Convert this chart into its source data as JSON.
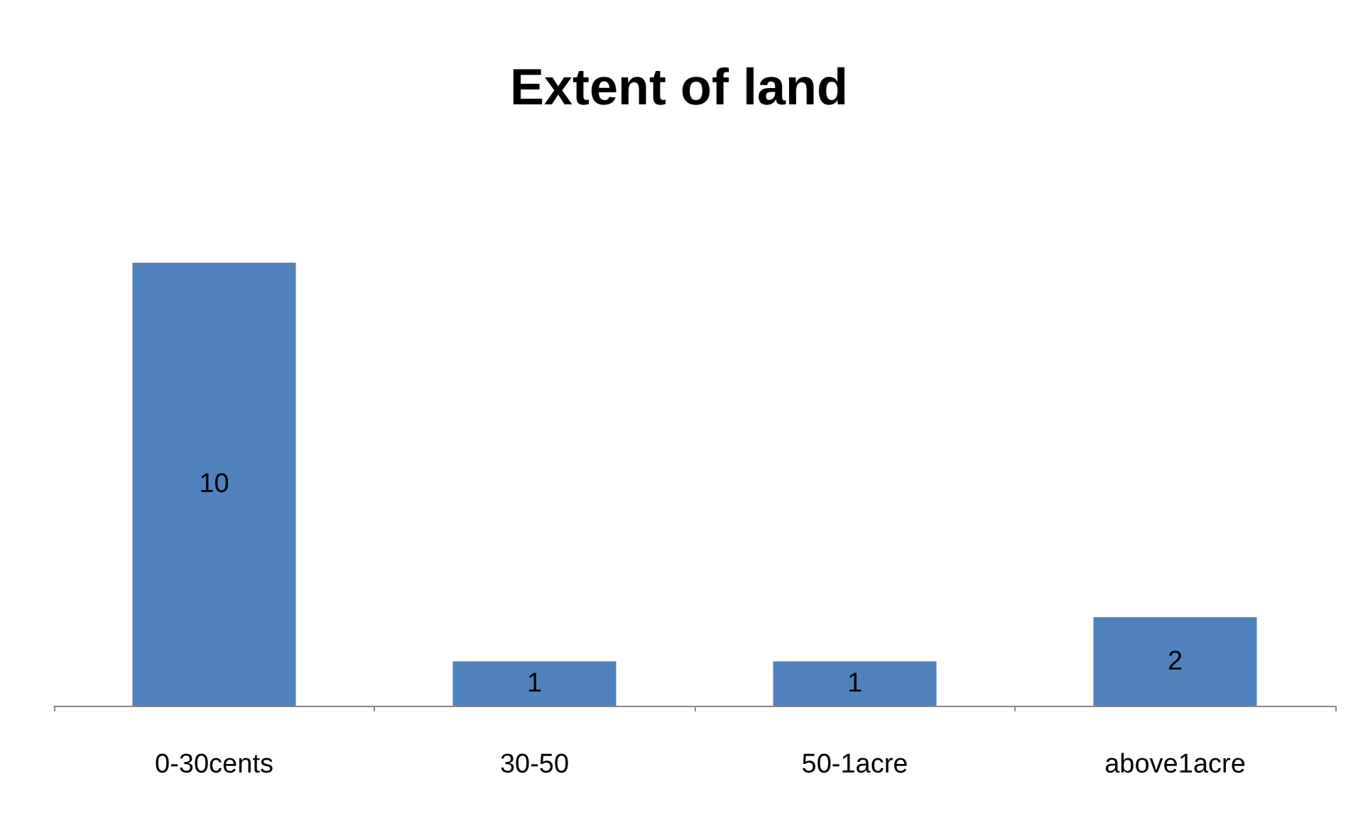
{
  "chart_data": {
    "type": "bar",
    "title": "Extent of land",
    "categories": [
      "0-30cents",
      "30-50",
      "50-1acre",
      "above1acre"
    ],
    "values": [
      10,
      1,
      1,
      2
    ],
    "color": "#4f81bd",
    "data_labels": true
  }
}
